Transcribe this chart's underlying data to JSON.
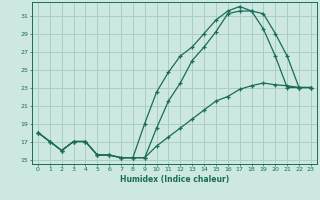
{
  "title": "",
  "xlabel": "Humidex (Indice chaleur)",
  "background_color": "#cce8e0",
  "line_color": "#1a6b5a",
  "grid_color": "#aacfc7",
  "xlim": [
    -0.5,
    23.5
  ],
  "ylim": [
    14.5,
    32.5
  ],
  "xticks": [
    0,
    1,
    2,
    3,
    4,
    5,
    6,
    7,
    8,
    9,
    10,
    11,
    12,
    13,
    14,
    15,
    16,
    17,
    18,
    19,
    20,
    21,
    22,
    23
  ],
  "yticks": [
    15,
    17,
    19,
    21,
    23,
    25,
    27,
    29,
    31
  ],
  "line1_x": [
    0,
    1,
    2,
    3,
    4,
    5,
    6,
    7,
    8,
    9,
    10,
    11,
    12,
    13,
    14,
    15,
    16,
    17,
    18,
    19,
    20,
    21,
    22,
    23
  ],
  "line1_y": [
    18.0,
    17.0,
    16.0,
    17.0,
    17.0,
    15.5,
    15.5,
    15.2,
    15.2,
    15.2,
    18.5,
    21.5,
    23.5,
    26.0,
    27.5,
    29.2,
    31.2,
    31.5,
    31.5,
    31.2,
    29.0,
    26.5,
    23.0,
    23.0
  ],
  "line2_x": [
    0,
    1,
    2,
    3,
    4,
    5,
    6,
    7,
    8,
    9,
    10,
    11,
    12,
    13,
    14,
    15,
    16,
    17,
    18,
    19,
    20,
    21,
    22,
    23
  ],
  "line2_y": [
    18.0,
    17.0,
    16.0,
    17.0,
    17.0,
    15.5,
    15.5,
    15.2,
    15.2,
    19.0,
    22.5,
    24.7,
    26.5,
    27.5,
    29.0,
    30.5,
    31.5,
    32.0,
    31.5,
    29.5,
    26.5,
    23.0,
    23.0,
    23.0
  ],
  "line3_x": [
    0,
    1,
    2,
    3,
    4,
    5,
    6,
    7,
    8,
    9,
    10,
    11,
    12,
    13,
    14,
    15,
    16,
    17,
    18,
    19,
    20,
    21,
    22,
    23
  ],
  "line3_y": [
    18.0,
    17.0,
    16.0,
    17.0,
    17.0,
    15.5,
    15.5,
    15.2,
    15.2,
    15.2,
    16.5,
    17.5,
    18.5,
    19.5,
    20.5,
    21.5,
    22.0,
    22.8,
    23.2,
    23.5,
    23.3,
    23.2,
    23.0,
    23.0
  ]
}
